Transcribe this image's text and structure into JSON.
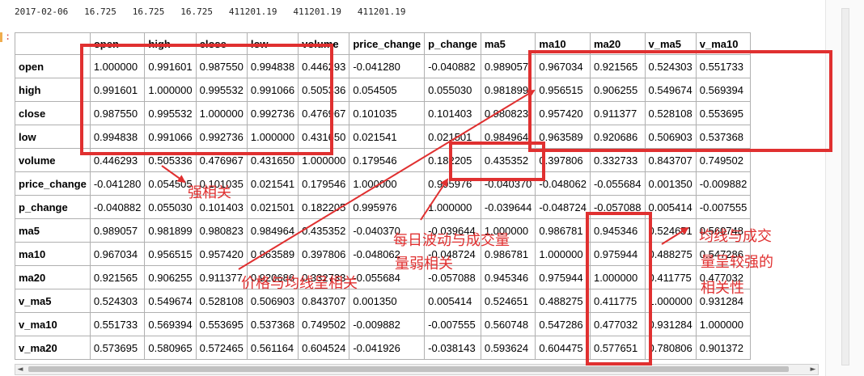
{
  "output_line": "2017-02-06   16.725   16.725   16.725   411201.19   411201.19   411201.19",
  "prompt_marker": ":",
  "table": {
    "columns": [
      "",
      "open",
      "high",
      "close",
      "low",
      "volume",
      "price_change",
      "p_change",
      "ma5",
      "ma10",
      "ma20",
      "v_ma5",
      "v_ma10"
    ],
    "rows": [
      [
        "open",
        "1.000000",
        "0.991601",
        "0.987550",
        "0.994838",
        "0.446293",
        "-0.041280",
        "-0.040882",
        "0.989057",
        "0.967034",
        "0.921565",
        "0.524303",
        "0.551733"
      ],
      [
        "high",
        "0.991601",
        "1.000000",
        "0.995532",
        "0.991066",
        "0.505336",
        "0.054505",
        "0.055030",
        "0.981899",
        "0.956515",
        "0.906255",
        "0.549674",
        "0.569394"
      ],
      [
        "close",
        "0.987550",
        "0.995532",
        "1.000000",
        "0.992736",
        "0.476967",
        "0.101035",
        "0.101403",
        "0.980823",
        "0.957420",
        "0.911377",
        "0.528108",
        "0.553695"
      ],
      [
        "low",
        "0.994838",
        "0.991066",
        "0.992736",
        "1.000000",
        "0.431650",
        "0.021541",
        "0.021501",
        "0.984964",
        "0.963589",
        "0.920686",
        "0.506903",
        "0.537368"
      ],
      [
        "volume",
        "0.446293",
        "0.505336",
        "0.476967",
        "0.431650",
        "1.000000",
        "0.179546",
        "0.182205",
        "0.435352",
        "0.397806",
        "0.332733",
        "0.843707",
        "0.749502"
      ],
      [
        "price_change",
        "-0.041280",
        "0.054505",
        "0.101035",
        "0.021541",
        "0.179546",
        "1.000000",
        "0.995976",
        "-0.040370",
        "-0.048062",
        "-0.055684",
        "0.001350",
        "-0.009882"
      ],
      [
        "p_change",
        "-0.040882",
        "0.055030",
        "0.101403",
        "0.021501",
        "0.182205",
        "0.995976",
        "1.000000",
        "-0.039644",
        "-0.048724",
        "-0.057088",
        "0.005414",
        "-0.007555"
      ],
      [
        "ma5",
        "0.989057",
        "0.981899",
        "0.980823",
        "0.984964",
        "0.435352",
        "-0.040370",
        "-0.039644",
        "1.000000",
        "0.986781",
        "0.945346",
        "0.524651",
        "0.560748"
      ],
      [
        "ma10",
        "0.967034",
        "0.956515",
        "0.957420",
        "0.963589",
        "0.397806",
        "-0.048062",
        "-0.048724",
        "0.986781",
        "1.000000",
        "0.975944",
        "0.488275",
        "0.547286"
      ],
      [
        "ma20",
        "0.921565",
        "0.906255",
        "0.911377",
        "0.920686",
        "0.332733",
        "-0.055684",
        "-0.057088",
        "0.945346",
        "0.975944",
        "1.000000",
        "0.411775",
        "0.477032"
      ],
      [
        "v_ma5",
        "0.524303",
        "0.549674",
        "0.528108",
        "0.506903",
        "0.843707",
        "0.001350",
        "0.005414",
        "0.524651",
        "0.488275",
        "0.411775",
        "1.000000",
        "0.931284"
      ],
      [
        "v_ma10",
        "0.551733",
        "0.569394",
        "0.553695",
        "0.537368",
        "0.749502",
        "-0.009882",
        "-0.007555",
        "0.560748",
        "0.547286",
        "0.477032",
        "0.931284",
        "1.000000"
      ],
      [
        "v_ma20",
        "0.573695",
        "0.580965",
        "0.572465",
        "0.561164",
        "0.604524",
        "-0.041926",
        "-0.038143",
        "0.593624",
        "0.604475",
        "0.577651",
        "0.780806",
        "0.901372"
      ]
    ]
  },
  "annotations": {
    "strong_corr": "强相关",
    "daily_volatility": [
      "每日波动与成交量",
      "量弱相关"
    ],
    "price_corr": "价格与均线呈相关",
    "ma_volume": [
      "均线与成交",
      "量呈较强的",
      "相关性"
    ]
  },
  "colors": {
    "annotation": "#e03030"
  },
  "scrollbar": {
    "left_arrow": "◄",
    "right_arrow": "►"
  }
}
